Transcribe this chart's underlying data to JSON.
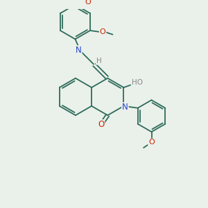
{
  "bg_color": "#eaf0ea",
  "bond_color": "#2d6b5a",
  "atom_colors": {
    "N": "#2244cc",
    "O": "#cc2200",
    "H": "#888888",
    "C": "#2d6b5a"
  },
  "figsize": [
    3.0,
    3.0
  ],
  "dpi": 100
}
